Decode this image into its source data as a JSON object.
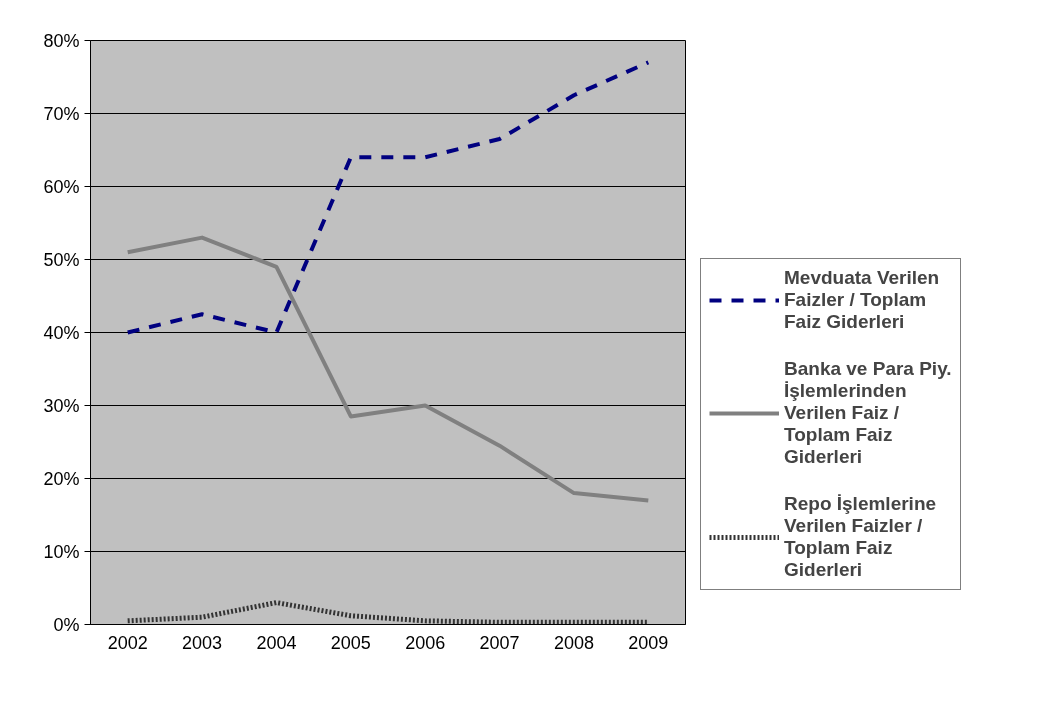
{
  "chart_data": {
    "type": "line",
    "categories": [
      "2002",
      "2003",
      "2004",
      "2005",
      "2006",
      "2007",
      "2008",
      "2009"
    ],
    "series": [
      {
        "name": "Mevduata Verilen Faizler / Toplam Faiz Giderleri",
        "color": "#000080",
        "line_style": "dashed",
        "values": [
          40,
          42.5,
          40,
          64,
          64,
          66.5,
          72.5,
          77
        ]
      },
      {
        "name": "Banka ve Para Piy. İşlemlerinden Verilen Faiz / Toplam Faiz Giderleri",
        "color": "#808080",
        "line_style": "solid",
        "values": [
          51,
          53,
          49,
          28.5,
          30,
          24.5,
          18,
          17
        ]
      },
      {
        "name": "Repo İşlemlerine Verilen Faizler / Toplam Faiz Giderleri",
        "color": "#333333",
        "line_style": "dotted",
        "values": [
          0.5,
          1,
          3,
          1.2,
          0.5,
          0.3,
          0.3,
          0.3
        ]
      }
    ],
    "ylim": [
      0,
      80
    ],
    "yticks": [
      {
        "value": 0,
        "label": "0%"
      },
      {
        "value": 10,
        "label": "10%"
      },
      {
        "value": 20,
        "label": "20%"
      },
      {
        "value": 30,
        "label": "30%"
      },
      {
        "value": 40,
        "label": "40%"
      },
      {
        "value": 50,
        "label": "50%"
      },
      {
        "value": 60,
        "label": "60%"
      },
      {
        "value": 70,
        "label": "70%"
      },
      {
        "value": 80,
        "label": "80%"
      }
    ],
    "grid": "y",
    "legend": "right",
    "marker": "none"
  }
}
